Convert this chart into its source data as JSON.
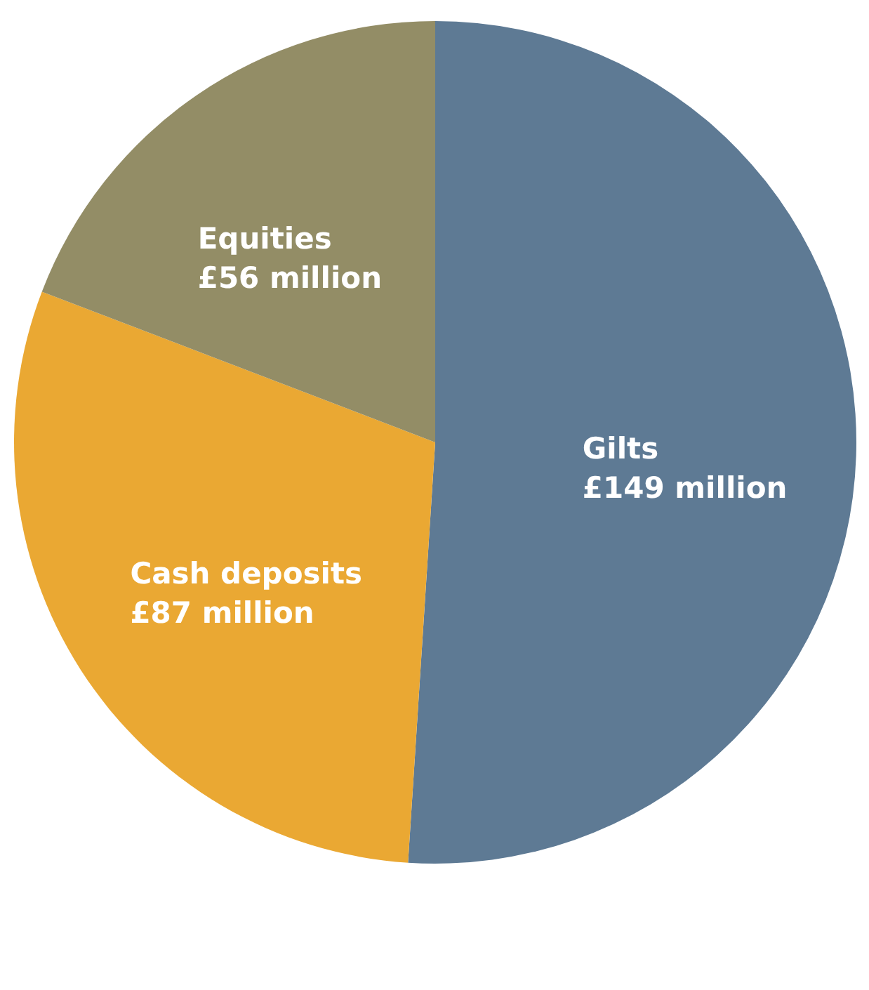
{
  "chart_data": {
    "type": "pie",
    "categories": [
      "Gilts",
      "Cash deposits",
      "Equities"
    ],
    "values": [
      149,
      87,
      56
    ],
    "colors": [
      "#5e7a94",
      "#eaa833",
      "#938d66"
    ],
    "value_labels": [
      "£149 million",
      "£87 million",
      "£56 million"
    ]
  }
}
